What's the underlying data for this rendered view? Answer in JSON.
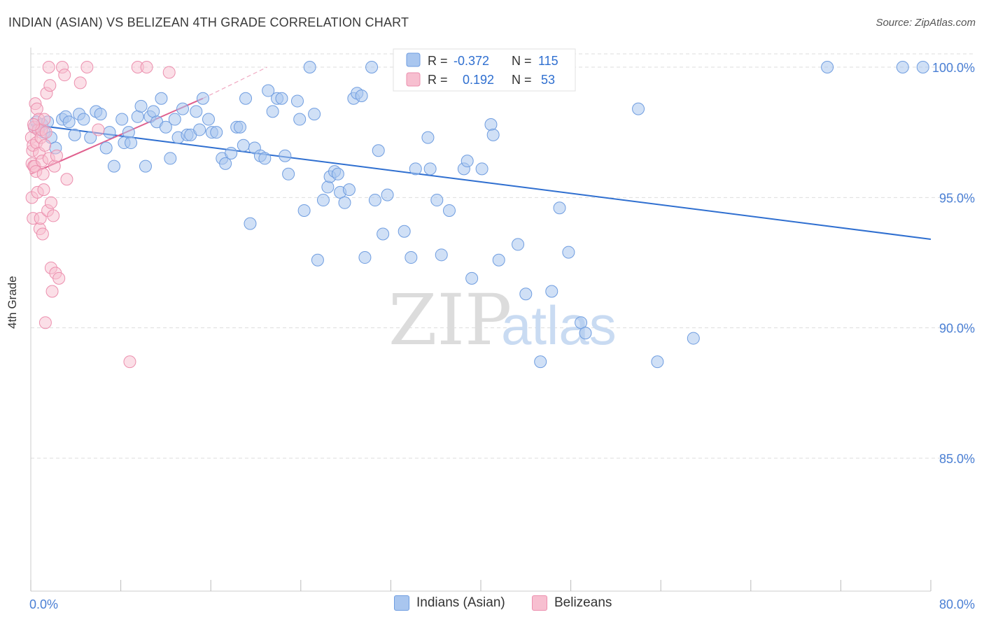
{
  "header": {
    "title": "INDIAN (ASIAN) VS BELIZEAN 4TH GRADE CORRELATION CHART",
    "source": "Source: ZipAtlas.com"
  },
  "watermark": {
    "zip": "ZIP",
    "atlas": "atlas"
  },
  "legend_box": {
    "rows": [
      {
        "r_label": "R =",
        "r_value": "-0.372",
        "n_label": "N =",
        "n_value": "115"
      },
      {
        "r_label": "R =",
        "r_value": "0.192",
        "n_label": "N =",
        "n_value": "53"
      }
    ]
  },
  "bottom_legend": {
    "series1": "Indians (Asian)",
    "series2": "Belizeans"
  },
  "colors": {
    "blue_fill": "#a9c6ef",
    "blue_stroke": "#6f9de0",
    "blue_line": "#2f6fd0",
    "pink_fill": "#f7bfd0",
    "pink_stroke": "#ec8fae",
    "pink_line": "#e0608e",
    "axis_text": "#4a7fd4",
    "grid": "#dddddd"
  },
  "chart_data": {
    "type": "scatter",
    "title": "INDIAN (ASIAN) VS BELIZEAN 4TH GRADE CORRELATION CHART",
    "xlabel": "",
    "ylabel": "4th Grade",
    "xlim": [
      0,
      80
    ],
    "ylim": [
      80.5,
      100.6
    ],
    "x_tick_labels": [
      "0.0%",
      "80.0%"
    ],
    "y_ticks": [
      85,
      90,
      95,
      100
    ],
    "y_tick_labels": [
      "85.0%",
      "90.0%",
      "95.0%",
      "100.0%"
    ],
    "grid": true,
    "legend_position": "top-center",
    "series": [
      {
        "name": "Indians (Asian)",
        "R": -0.372,
        "N": 115,
        "trend": {
          "x": [
            0,
            80
          ],
          "y": [
            97.8,
            93.4
          ]
        },
        "points": [
          [
            0.3,
            97.7
          ],
          [
            0.5,
            97.9
          ],
          [
            0.7,
            97.6
          ],
          [
            1.0,
            97.8
          ],
          [
            1.2,
            97.5
          ],
          [
            1.5,
            97.9
          ],
          [
            1.8,
            97.3
          ],
          [
            2.2,
            96.9
          ],
          [
            2.8,
            98.0
          ],
          [
            3.1,
            98.1
          ],
          [
            3.4,
            97.9
          ],
          [
            3.9,
            97.4
          ],
          [
            4.3,
            98.2
          ],
          [
            4.7,
            98.0
          ],
          [
            5.3,
            97.3
          ],
          [
            5.8,
            98.3
          ],
          [
            6.2,
            98.2
          ],
          [
            6.7,
            96.9
          ],
          [
            7.0,
            97.5
          ],
          [
            7.4,
            96.2
          ],
          [
            8.1,
            98.0
          ],
          [
            8.3,
            97.1
          ],
          [
            8.7,
            97.5
          ],
          [
            8.9,
            97.1
          ],
          [
            9.5,
            98.1
          ],
          [
            9.8,
            98.5
          ],
          [
            10.2,
            96.2
          ],
          [
            10.6,
            98.1
          ],
          [
            10.9,
            98.3
          ],
          [
            11.2,
            97.9
          ],
          [
            11.6,
            98.8
          ],
          [
            12.0,
            97.7
          ],
          [
            12.4,
            96.5
          ],
          [
            12.8,
            98.0
          ],
          [
            13.1,
            97.3
          ],
          [
            13.5,
            98.4
          ],
          [
            13.9,
            97.4
          ],
          [
            14.2,
            97.4
          ],
          [
            14.7,
            98.3
          ],
          [
            15.0,
            97.6
          ],
          [
            15.3,
            98.8
          ],
          [
            15.8,
            98.0
          ],
          [
            16.1,
            97.5
          ],
          [
            16.5,
            97.5
          ],
          [
            17.0,
            96.5
          ],
          [
            17.3,
            96.3
          ],
          [
            17.8,
            96.7
          ],
          [
            18.3,
            97.7
          ],
          [
            18.6,
            97.7
          ],
          [
            19.1,
            98.8
          ],
          [
            18.9,
            97.0
          ],
          [
            19.5,
            94.0
          ],
          [
            19.9,
            96.9
          ],
          [
            20.4,
            96.6
          ],
          [
            20.8,
            96.5
          ],
          [
            21.1,
            99.1
          ],
          [
            21.5,
            98.3
          ],
          [
            21.9,
            98.8
          ],
          [
            22.3,
            98.8
          ],
          [
            22.6,
            96.6
          ],
          [
            22.9,
            95.9
          ],
          [
            23.7,
            98.7
          ],
          [
            23.9,
            98.0
          ],
          [
            24.3,
            94.5
          ],
          [
            24.8,
            100.0
          ],
          [
            25.2,
            98.2
          ],
          [
            25.5,
            92.6
          ],
          [
            26.0,
            94.9
          ],
          [
            26.4,
            95.4
          ],
          [
            26.6,
            95.8
          ],
          [
            27.0,
            96.0
          ],
          [
            27.3,
            95.9
          ],
          [
            27.5,
            95.2
          ],
          [
            27.9,
            94.8
          ],
          [
            28.3,
            95.3
          ],
          [
            28.7,
            98.8
          ],
          [
            29.0,
            99.0
          ],
          [
            29.4,
            98.9
          ],
          [
            29.7,
            92.7
          ],
          [
            30.3,
            100.0
          ],
          [
            30.6,
            94.9
          ],
          [
            30.9,
            96.8
          ],
          [
            31.3,
            93.6
          ],
          [
            31.7,
            95.1
          ],
          [
            33.2,
            93.7
          ],
          [
            33.8,
            92.7
          ],
          [
            34.2,
            96.1
          ],
          [
            35.3,
            97.3
          ],
          [
            35.5,
            96.1
          ],
          [
            36.1,
            94.9
          ],
          [
            36.5,
            92.8
          ],
          [
            37.2,
            94.5
          ],
          [
            38.5,
            96.1
          ],
          [
            38.8,
            96.4
          ],
          [
            39.2,
            91.9
          ],
          [
            40.1,
            96.1
          ],
          [
            40.9,
            97.8
          ],
          [
            41.1,
            97.4
          ],
          [
            41.6,
            92.6
          ],
          [
            43.3,
            93.2
          ],
          [
            44.0,
            91.3
          ],
          [
            44.8,
            100.0
          ],
          [
            45.3,
            88.7
          ],
          [
            46.3,
            91.4
          ],
          [
            46.9,
            100.0
          ],
          [
            47.0,
            94.6
          ],
          [
            47.8,
            92.9
          ],
          [
            48.9,
            90.2
          ],
          [
            49.3,
            89.8
          ],
          [
            54.0,
            98.4
          ],
          [
            55.7,
            88.7
          ],
          [
            58.9,
            89.6
          ],
          [
            70.8,
            100.0
          ],
          [
            77.5,
            100.0
          ],
          [
            79.3,
            100.0
          ]
        ]
      },
      {
        "name": "Belizeans",
        "R": 0.192,
        "N": 53,
        "trend": {
          "x": [
            0,
            15.3
          ],
          "y": [
            95.9,
            98.8
          ]
        },
        "trend_extension": {
          "x": [
            15.3,
            21.0
          ],
          "y": [
            98.8,
            100.0
          ]
        },
        "points": [
          [
            0.05,
            97.3
          ],
          [
            0.1,
            96.3
          ],
          [
            0.1,
            95.0
          ],
          [
            0.15,
            96.8
          ],
          [
            0.2,
            97.0
          ],
          [
            0.2,
            94.2
          ],
          [
            0.25,
            96.2
          ],
          [
            0.3,
            97.7
          ],
          [
            0.35,
            96.2
          ],
          [
            0.4,
            98.6
          ],
          [
            0.45,
            96.0
          ],
          [
            0.5,
            97.1
          ],
          [
            0.55,
            98.4
          ],
          [
            0.6,
            95.2
          ],
          [
            0.65,
            97.6
          ],
          [
            0.7,
            98.0
          ],
          [
            0.75,
            96.7
          ],
          [
            0.8,
            93.8
          ],
          [
            0.85,
            94.2
          ],
          [
            0.9,
            97.3
          ],
          [
            0.95,
            97.6
          ],
          [
            1.0,
            96.4
          ],
          [
            1.05,
            93.6
          ],
          [
            1.1,
            95.9
          ],
          [
            1.15,
            95.3
          ],
          [
            1.2,
            98.0
          ],
          [
            1.25,
            97.0
          ],
          [
            1.3,
            90.2
          ],
          [
            1.35,
            97.5
          ],
          [
            1.4,
            99.0
          ],
          [
            1.5,
            94.5
          ],
          [
            1.6,
            96.5
          ],
          [
            1.6,
            100.0
          ],
          [
            1.7,
            99.3
          ],
          [
            1.8,
            92.3
          ],
          [
            1.8,
            94.8
          ],
          [
            1.9,
            91.4
          ],
          [
            2.0,
            94.3
          ],
          [
            2.1,
            96.2
          ],
          [
            2.2,
            92.1
          ],
          [
            2.3,
            96.6
          ],
          [
            2.5,
            91.9
          ],
          [
            2.8,
            100.0
          ],
          [
            3.0,
            99.7
          ],
          [
            3.2,
            95.7
          ],
          [
            4.4,
            99.4
          ],
          [
            5.0,
            100.0
          ],
          [
            8.8,
            88.7
          ],
          [
            9.5,
            100.0
          ],
          [
            10.3,
            100.0
          ],
          [
            12.3,
            99.8
          ],
          [
            6.0,
            97.6
          ],
          [
            0.25,
            97.8
          ]
        ]
      }
    ]
  }
}
